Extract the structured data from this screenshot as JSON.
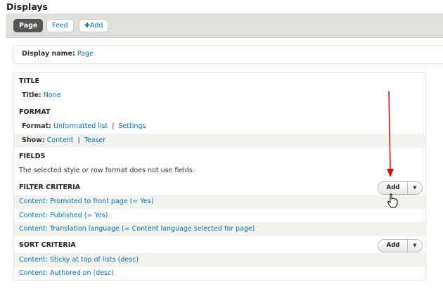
{
  "title": "Displays",
  "tabs": [
    {
      "label": "Page"
    },
    {
      "label": "Feed"
    },
    {
      "label": "Add"
    }
  ],
  "display_name": {
    "label": "Display name:",
    "value": "Page"
  },
  "sections": {
    "title": {
      "heading": "TITLE",
      "label": "Title:",
      "value": "None"
    },
    "format": {
      "heading": "FORMAT",
      "format_label": "Format:",
      "format_value": "Unformatted list",
      "settings": "Settings",
      "show_label": "Show:",
      "show_value": "Content",
      "teaser": "Teaser"
    },
    "fields": {
      "heading": "FIELDS",
      "description": "The selected style or row format does not use fields."
    },
    "filter": {
      "heading": "FILTER CRITERIA",
      "add": "Add",
      "items": [
        "Content: Promoted to front page (= Yes)",
        "Content: Published (= Yes)",
        "Content: Translation language (= Content language selected for page)"
      ]
    },
    "sort": {
      "heading": "SORT CRITERIA",
      "add": "Add",
      "items": [
        "Content: Sticky at top of lists (desc)",
        "Content: Authored on (desc)"
      ]
    }
  },
  "annotation_color": "#e00000"
}
